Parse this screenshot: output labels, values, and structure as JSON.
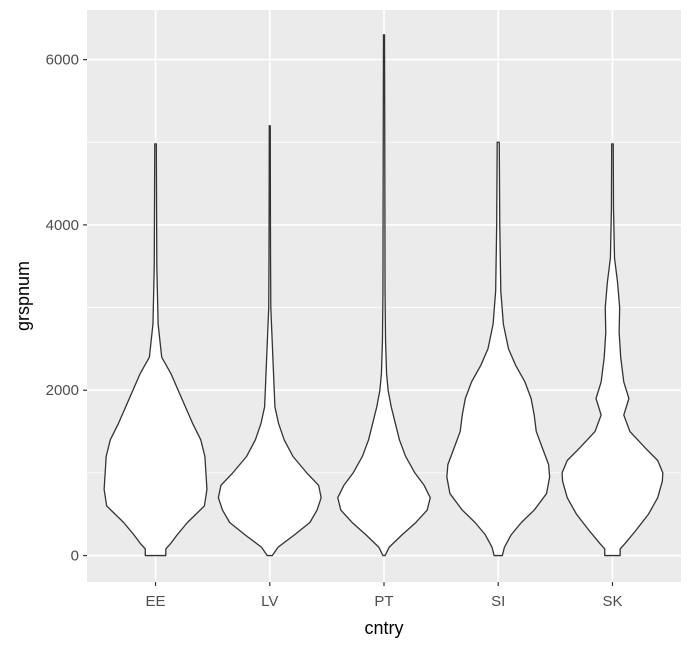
{
  "chart_data": {
    "type": "violin",
    "xlabel": "cntry",
    "ylabel": "grspnum",
    "categories": [
      "EE",
      "LV",
      "PT",
      "SI",
      "SK"
    ],
    "ylim": [
      -320,
      6600
    ],
    "y_ticks": [
      0,
      2000,
      4000,
      6000
    ],
    "y_tick_labels": [
      "0",
      "2000",
      "4000",
      "6000"
    ],
    "grid": true,
    "colors": {
      "panel_background": "#ebebeb",
      "grid": "#ffffff",
      "violin_fill": "#ffffff",
      "violin_outline": "#333333"
    },
    "violins": [
      {
        "category": "EE",
        "min": 0,
        "max": 4980,
        "density_profile": [
          [
            0,
            0.2
          ],
          [
            80,
            0.2
          ],
          [
            150,
            0.3
          ],
          [
            250,
            0.42
          ],
          [
            400,
            0.62
          ],
          [
            600,
            0.95
          ],
          [
            800,
            1.0
          ],
          [
            1000,
            0.98
          ],
          [
            1200,
            0.96
          ],
          [
            1400,
            0.88
          ],
          [
            1600,
            0.72
          ],
          [
            1800,
            0.58
          ],
          [
            2000,
            0.44
          ],
          [
            2200,
            0.3
          ],
          [
            2400,
            0.12
          ],
          [
            2800,
            0.05
          ],
          [
            3500,
            0.025
          ],
          [
            4200,
            0.02
          ],
          [
            4980,
            0.015
          ]
        ]
      },
      {
        "category": "LV",
        "min": 0,
        "max": 5200,
        "density_profile": [
          [
            0,
            0.05
          ],
          [
            100,
            0.16
          ],
          [
            250,
            0.48
          ],
          [
            400,
            0.78
          ],
          [
            550,
            0.92
          ],
          [
            700,
            1.0
          ],
          [
            850,
            0.95
          ],
          [
            1000,
            0.72
          ],
          [
            1200,
            0.45
          ],
          [
            1400,
            0.28
          ],
          [
            1600,
            0.17
          ],
          [
            1800,
            0.1
          ],
          [
            2100,
            0.08
          ],
          [
            2400,
            0.06
          ],
          [
            2700,
            0.04
          ],
          [
            3000,
            0.02
          ],
          [
            3600,
            0.015
          ],
          [
            4300,
            0.012
          ],
          [
            5200,
            0.01
          ]
        ]
      },
      {
        "category": "PT",
        "min": 0,
        "max": 6300,
        "density_profile": [
          [
            0,
            0.02
          ],
          [
            100,
            0.1
          ],
          [
            250,
            0.35
          ],
          [
            400,
            0.62
          ],
          [
            550,
            0.84
          ],
          [
            700,
            0.9
          ],
          [
            850,
            0.78
          ],
          [
            1000,
            0.6
          ],
          [
            1200,
            0.42
          ],
          [
            1400,
            0.3
          ],
          [
            1600,
            0.22
          ],
          [
            1800,
            0.14
          ],
          [
            2000,
            0.08
          ],
          [
            2200,
            0.05
          ],
          [
            2600,
            0.03
          ],
          [
            3200,
            0.02
          ],
          [
            4000,
            0.018
          ],
          [
            5000,
            0.015
          ],
          [
            6300,
            0.01
          ]
        ]
      },
      {
        "category": "SI",
        "min": 0,
        "max": 5000,
        "density_profile": [
          [
            0,
            0.08
          ],
          [
            100,
            0.12
          ],
          [
            250,
            0.25
          ],
          [
            400,
            0.45
          ],
          [
            550,
            0.7
          ],
          [
            750,
            0.94
          ],
          [
            950,
            1.0
          ],
          [
            1100,
            0.98
          ],
          [
            1300,
            0.86
          ],
          [
            1500,
            0.74
          ],
          [
            1700,
            0.7
          ],
          [
            1900,
            0.64
          ],
          [
            2100,
            0.52
          ],
          [
            2300,
            0.34
          ],
          [
            2500,
            0.2
          ],
          [
            2800,
            0.1
          ],
          [
            3200,
            0.05
          ],
          [
            4000,
            0.03
          ],
          [
            5000,
            0.02
          ]
        ]
      },
      {
        "category": "SK",
        "min": 0,
        "max": 4980,
        "density_profile": [
          [
            0,
            0.15
          ],
          [
            80,
            0.15
          ],
          [
            150,
            0.25
          ],
          [
            300,
            0.45
          ],
          [
            500,
            0.7
          ],
          [
            700,
            0.88
          ],
          [
            900,
            0.97
          ],
          [
            1000,
            0.98
          ],
          [
            1150,
            0.88
          ],
          [
            1300,
            0.64
          ],
          [
            1500,
            0.34
          ],
          [
            1700,
            0.22
          ],
          [
            1900,
            0.32
          ],
          [
            2100,
            0.22
          ],
          [
            2400,
            0.16
          ],
          [
            2700,
            0.13
          ],
          [
            3000,
            0.14
          ],
          [
            3300,
            0.1
          ],
          [
            3600,
            0.04
          ],
          [
            4200,
            0.02
          ],
          [
            4980,
            0.015
          ]
        ]
      }
    ]
  }
}
